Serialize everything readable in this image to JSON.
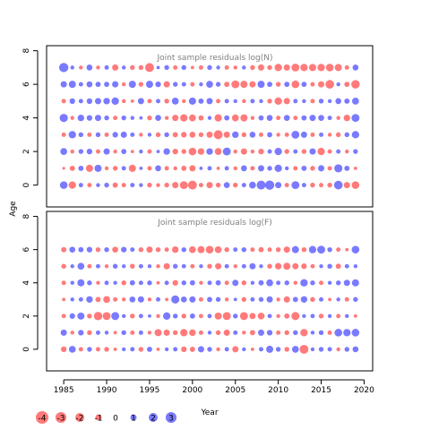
{
  "chart_data": {
    "type": "scatter",
    "ylabel": "Age",
    "xlabel": "Year",
    "x_ticks": [
      1985,
      1990,
      1995,
      2000,
      2005,
      2010,
      2015,
      2020
    ],
    "y_ticks": [
      0,
      2,
      4,
      6,
      8
    ],
    "years": [
      1985,
      1986,
      1987,
      1988,
      1989,
      1990,
      1991,
      1992,
      1993,
      1994,
      1995,
      1996,
      1997,
      1998,
      1999,
      2000,
      2001,
      2002,
      2003,
      2004,
      2005,
      2006,
      2007,
      2008,
      2009,
      2010,
      2011,
      2012,
      2013,
      2014,
      2015,
      2016,
      2017,
      2018,
      2019
    ],
    "ages": [
      0,
      1,
      2,
      3,
      4,
      5,
      6,
      7
    ],
    "xlim": [
      1983,
      2021
    ],
    "colors": {
      "positive": "#4d4dff",
      "negative": "#ff4d4d",
      "axis": "#000000",
      "title": "#808080"
    },
    "panels": [
      {
        "title": "Joint sample residuals log(N)",
        "ylim": [
          -1.3,
          8.3
        ],
        "ages": [
          0,
          1,
          2,
          3,
          4,
          5,
          6,
          7
        ],
        "residuals": [
          [
            1.5,
            -1.4,
            0.5,
            -0.5,
            0.4,
            0.6,
            -0.7,
            -0.5,
            0.5,
            0.4,
            -0.6,
            -0.4,
            -0.6,
            -1.0,
            -1.6,
            -2.0,
            -0.5,
            -1.0,
            -0.6,
            0.9,
            -0.6,
            0.5,
            1.2,
            2.0,
            2.2,
            1.0,
            -0.5,
            1.6,
            0.5,
            -0.6,
            -0.5,
            -0.6,
            1.9,
            -1.0,
            -1.5
          ],
          [
            -0.2,
            -0.7,
            0.7,
            -1.3,
            1.3,
            -0.4,
            -0.6,
            0.5,
            -1.3,
            0.3,
            -0.5,
            0.9,
            -0.5,
            -0.4,
            -0.7,
            -1.0,
            0.3,
            0.5,
            -0.3,
            0.5,
            -0.4,
            0.9,
            -0.5,
            1.0,
            0.6,
            1.4,
            0.4,
            -0.5,
            0.7,
            -0.6,
            1.0,
            -0.5,
            1.7,
            0.7,
            -0.3
          ],
          [
            1.2,
            -0.4,
            0.6,
            0.8,
            -0.5,
            1.0,
            -0.4,
            0.7,
            -0.3,
            0.4,
            -0.5,
            0.3,
            1.1,
            -0.8,
            -0.6,
            -1.5,
            -1.1,
            1.1,
            -1.2,
            1.6,
            -0.4,
            -1.0,
            -0.4,
            -0.8,
            0.5,
            1.4,
            -0.6,
            0.5,
            -0.6,
            1.0,
            -1.4,
            -0.5,
            0.5,
            -0.4,
            0.6
          ],
          [
            -0.5,
            1.4,
            0.6,
            -0.5,
            0.6,
            -0.5,
            0.8,
            1.0,
            0.5,
            -0.4,
            0.4,
            -0.6,
            0.6,
            -0.7,
            -0.8,
            -0.9,
            -0.6,
            -1.0,
            -2.0,
            -1.0,
            1.1,
            -0.6,
            0.9,
            -0.5,
            0.7,
            -0.4,
            -0.5,
            1.6,
            1.0,
            -0.5,
            0.5,
            -0.4,
            -0.6,
            0.6,
            1.4
          ],
          [
            1.7,
            -0.4,
            1.1,
            0.8,
            1.0,
            0.6,
            -0.5,
            0.6,
            0.4,
            0.3,
            -0.6,
            0.9,
            -0.4,
            -1.0,
            -1.4,
            -1.2,
            -0.7,
            0.4,
            -1.4,
            0.7,
            -1.2,
            -1.3,
            -0.4,
            0.7,
            0.9,
            -0.5,
            0.9,
            -0.5,
            0.7,
            1.0,
            0.9,
            0.5,
            -0.4,
            -1.1,
            1.6
          ],
          [
            -0.5,
            0.8,
            0.5,
            0.8,
            1.0,
            1.1,
            1.4,
            -0.4,
            -0.3,
            1.0,
            -0.5,
            0.5,
            -0.6,
            1.2,
            -0.4,
            1.3,
            0.7,
            1.0,
            -0.5,
            0.5,
            0.4,
            -0.4,
            0.5,
            0.4,
            -0.6,
            -1.4,
            -1.0,
            0.5,
            0.4,
            -0.5,
            0.6,
            0.4,
            0.9,
            0.7,
            1.2
          ],
          [
            1.0,
            1.3,
            0.5,
            0.9,
            0.7,
            0.7,
            1.0,
            -0.4,
            1.3,
            -0.6,
            1.3,
            0.8,
            -1.0,
            0.6,
            0.5,
            -0.5,
            0.4,
            1.2,
            0.6,
            -0.7,
            -1.6,
            -1.3,
            -1.0,
            1.3,
            0.7,
            -0.6,
            0.7,
            -1.5,
            0.7,
            -0.5,
            -1.0,
            -1.9,
            0.4,
            -0.7,
            -1.8
          ],
          [
            2.2,
            0.4,
            -0.4,
            0.9,
            -0.4,
            0.5,
            -1.0,
            0.4,
            -0.6,
            -0.6,
            -2.0,
            0.3,
            0.6,
            -0.5,
            0.6,
            -0.3,
            -0.5,
            0.6,
            0.4,
            -0.5,
            -0.4,
            0.4,
            -0.6,
            -1.0,
            -0.6,
            -1.4,
            -1.0,
            -1.6,
            -1.4,
            -1.3,
            -1.4,
            -1.5,
            -1.3,
            -0.5,
            0.9
          ]
        ]
      },
      {
        "title": "Joint sample residuals log(F)",
        "ylim": [
          -1.3,
          8.3
        ],
        "ages": [
          0,
          1,
          2,
          3,
          4,
          5,
          6
        ],
        "residuals": [
          [
            -0.8,
            1.2,
            -0.5,
            0.6,
            -0.5,
            -0.6,
            -0.3,
            0.4,
            0.5,
            -0.6,
            0.7,
            -0.3,
            0.4,
            0.5,
            -0.8,
            -0.7,
            1.0,
            0.6,
            -0.4,
            0.5,
            -1.0,
            0.4,
            -0.3,
            0.5,
            1.3,
            0.6,
            -0.6,
            1.2,
            -2.0,
            0.4,
            0.6,
            0.5,
            -0.4,
            0.6,
            0.9
          ],
          [
            1.0,
            -0.4,
            0.8,
            -0.6,
            0.5,
            0.4,
            -0.3,
            0.6,
            -0.5,
            0.5,
            -0.4,
            -1.3,
            -1.0,
            -0.6,
            -1.4,
            -1.1,
            -0.5,
            0.4,
            -0.6,
            -1.0,
            0.5,
            -0.4,
            -0.7,
            1.0,
            0.8,
            -0.5,
            -0.6,
            0.6,
            -1.4,
            0.4,
            0.6,
            -0.5,
            1.5,
            1.4,
            1.5
          ],
          [
            -0.5,
            0.8,
            1.3,
            -0.6,
            -1.8,
            -1.6,
            1.6,
            0.4,
            -0.6,
            0.5,
            0.3,
            -0.4,
            1.4,
            0.6,
            -0.6,
            0.7,
            -0.5,
            0.5,
            -1.3,
            -1.6,
            0.6,
            -1.6,
            -1.0,
            -1.2,
            0.5,
            -0.4,
            -0.7,
            -1.7,
            0.4,
            0.5,
            -0.6,
            0.4,
            -0.5,
            0.4,
            -0.3
          ],
          [
            -0.3,
            0.4,
            0.5,
            1.1,
            -0.7,
            -1.2,
            -0.5,
            -0.4,
            0.9,
            1.0,
            -0.4,
            0.5,
            -0.3,
            1.7,
            0.9,
            1.0,
            -0.5,
            0.7,
            0.6,
            -0.4,
            0.3,
            -0.6,
            0.5,
            0.6,
            1.0,
            -0.4,
            -1.0,
            0.7,
            1.1,
            -0.6,
            0.5,
            -0.3,
            0.4,
            -0.5,
            0.6
          ],
          [
            -0.5,
            0.4,
            1.3,
            0.6,
            -0.4,
            0.5,
            0.4,
            -0.6,
            0.7,
            0.5,
            0.6,
            -0.3,
            0.5,
            -0.8,
            0.6,
            0.7,
            -0.4,
            0.5,
            0.7,
            -0.5,
            1.0,
            -0.6,
            0.4,
            0.7,
            1.2,
            0.5,
            0.6,
            -0.4,
            1.4,
            0.6,
            -0.5,
            0.4,
            0.6,
            1.0,
            1.3
          ],
          [
            -0.6,
            0.4,
            1.2,
            -0.5,
            0.5,
            -0.4,
            0.6,
            0.4,
            -0.6,
            0.5,
            0.4,
            -0.4,
            -1.0,
            0.6,
            0.5,
            -0.5,
            0.4,
            -0.6,
            -1.0,
            0.5,
            -0.4,
            0.5,
            1.0,
            0.4,
            -0.6,
            -1.1,
            -1.3,
            -1.0,
            -0.8,
            -0.5,
            0.4,
            0.6,
            -0.7,
            0.5,
            0.4
          ],
          [
            -0.7,
            0.9,
            0.7,
            0.8,
            -0.6,
            0.6,
            -0.9,
            0.8,
            0.5,
            -0.6,
            -1.0,
            -0.6,
            -0.5,
            -1.1,
            0.6,
            -1.2,
            -1.3,
            -1.5,
            -1.2,
            -0.6,
            0.5,
            0.6,
            -0.5,
            -0.7,
            -0.5,
            -0.6,
            -1.0,
            1.3,
            -0.6,
            1.4,
            1.6,
            0.6,
            -0.5,
            -0.3,
            1.5
          ]
        ]
      }
    ],
    "legend": {
      "items": [
        {
          "label": "-4",
          "value": -4
        },
        {
          "label": "-3",
          "value": -3
        },
        {
          "label": "-2",
          "value": -2
        },
        {
          "label": "-1",
          "value": -1
        },
        {
          "label": "0",
          "value": 0
        },
        {
          "label": "1",
          "value": 1
        },
        {
          "label": "2",
          "value": 2
        },
        {
          "label": "3",
          "value": 3
        }
      ]
    }
  }
}
